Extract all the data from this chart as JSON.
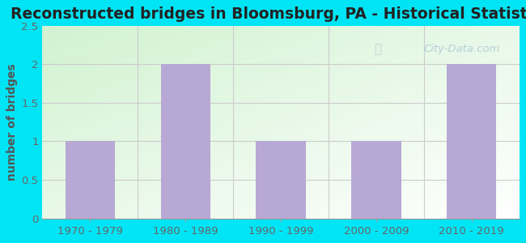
{
  "title": "Reconstructed bridges in Bloomsburg, PA - Historical Statistics",
  "categories": [
    "1970 - 1979",
    "1980 - 1989",
    "1990 - 1999",
    "2000 - 2009",
    "2010 - 2019"
  ],
  "values": [
    1,
    2,
    1,
    1,
    2
  ],
  "bar_color": "#b8a8d4",
  "ylabel": "number of bridges",
  "ylim": [
    0,
    2.5
  ],
  "yticks": [
    0,
    0.5,
    1,
    1.5,
    2,
    2.5
  ],
  "background_outer": "#00e5f5",
  "title_fontsize": 13.5,
  "ylabel_fontsize": 10,
  "tick_fontsize": 9.5,
  "watermark": "City-Data.com",
  "watermark_color": "#adc8d8",
  "ylabel_color": "#555555",
  "tick_color": "#666666",
  "title_color": "#222222"
}
